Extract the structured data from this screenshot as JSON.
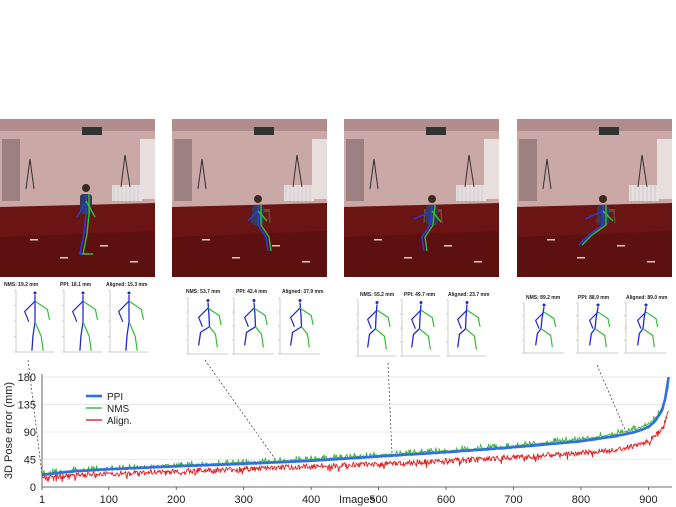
{
  "frames": [
    {
      "pose": "standing"
    },
    {
      "pose": "sitting"
    },
    {
      "pose": "sitting-lean"
    },
    {
      "pose": "sitting-reach"
    }
  ],
  "insets": [
    {
      "nms": "NMS: 19.2 mm",
      "ppi": "PPI: 18.1 mm",
      "aligned": "Aligned: 15.3 mm",
      "target_x": 1
    },
    {
      "nms": "NMS: 53.7 mm",
      "ppi": "PPI: 42.4 mm",
      "aligned": "Aligned: 37.9 mm",
      "target_x": 350
    },
    {
      "nms": "NMS: 55.2 mm",
      "ppi": "PPI: 49.7 mm",
      "aligned": "Aligned: 23.7 mm",
      "target_x": 520
    },
    {
      "nms": "NMS: 89.2 mm",
      "ppi": "PPI: 88.9 mm",
      "aligned": "Aligned: 89.0 mm",
      "target_x": 868
    }
  ],
  "chart_data": {
    "type": "line",
    "xlabel": "Images",
    "ylabel": "3D Pose error (mm)",
    "xlim": [
      1,
      935
    ],
    "ylim": [
      0,
      185
    ],
    "xticks": [
      "1",
      "100",
      "200",
      "300",
      "400",
      "500",
      "600",
      "700",
      "800",
      "900"
    ],
    "yticks": [
      "180",
      "135",
      "90",
      "45",
      "0"
    ],
    "grid": true,
    "legend_position": "upper-left",
    "series": [
      {
        "name": "PPI",
        "color": "#2f6fe0",
        "anchor_x": [
          1,
          50,
          100,
          200,
          300,
          400,
          500,
          600,
          700,
          800,
          850,
          880,
          900,
          910,
          920,
          925,
          930
        ],
        "anchor_y": [
          20,
          26,
          29,
          34,
          38,
          43,
          50,
          57,
          65,
          75,
          83,
          90,
          98,
          108,
          125,
          145,
          180
        ]
      },
      {
        "name": "NMS",
        "color": "#3db33d",
        "anchor_x": [
          1,
          50,
          100,
          200,
          300,
          400,
          500,
          600,
          700,
          800,
          850,
          880,
          900,
          910,
          920,
          925,
          930
        ],
        "anchor_y": [
          21,
          27,
          30,
          35,
          40,
          45,
          52,
          59,
          67,
          78,
          86,
          94,
          103,
          112,
          128,
          146,
          165
        ]
      },
      {
        "name": "Align.",
        "color": "#e02020",
        "anchor_x": [
          1,
          50,
          100,
          200,
          300,
          400,
          500,
          600,
          700,
          800,
          850,
          880,
          900,
          910,
          920,
          925,
          930
        ],
        "anchor_y": [
          16,
          20,
          22,
          26,
          30,
          34,
          38,
          43,
          49,
          56,
          62,
          68,
          76,
          84,
          96,
          108,
          125
        ]
      }
    ]
  }
}
